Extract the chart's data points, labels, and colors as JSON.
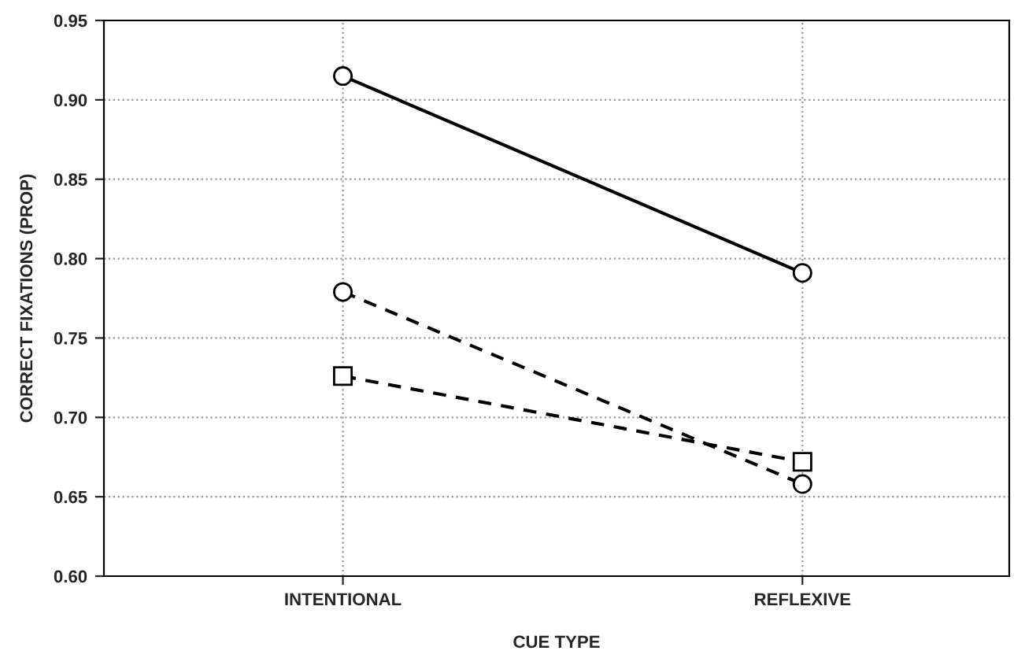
{
  "chart_data": {
    "type": "line",
    "xlabel": "CUE TYPE",
    "ylabel": "CORRECT FIXATIONS (PROP)",
    "categories": [
      "INTENTIONAL",
      "REFLEXIVE"
    ],
    "series": [
      {
        "color": "#000000",
        "values": [
          0.915,
          0.791
        ],
        "marker": "circle",
        "line_style": "solid"
      },
      {
        "color": "#000000",
        "values": [
          0.779,
          0.658
        ],
        "marker": "circle",
        "line_style": "dashed"
      },
      {
        "color": "#000000",
        "values": [
          0.726,
          0.672
        ],
        "marker": "square",
        "line_style": "dashed"
      }
    ],
    "ylim": [
      0.6,
      0.95
    ],
    "yticks": [
      {
        "value": 0.6,
        "label": "0.60"
      },
      {
        "value": 0.65,
        "label": "0.65"
      },
      {
        "value": 0.7,
        "label": "0.70"
      },
      {
        "value": 0.75,
        "label": "0.75"
      },
      {
        "value": 0.8,
        "label": "0.80"
      },
      {
        "value": 0.85,
        "label": "0.85"
      },
      {
        "value": 0.9,
        "label": "0.90"
      },
      {
        "value": 0.95,
        "label": "0.95"
      }
    ],
    "grid": true
  }
}
